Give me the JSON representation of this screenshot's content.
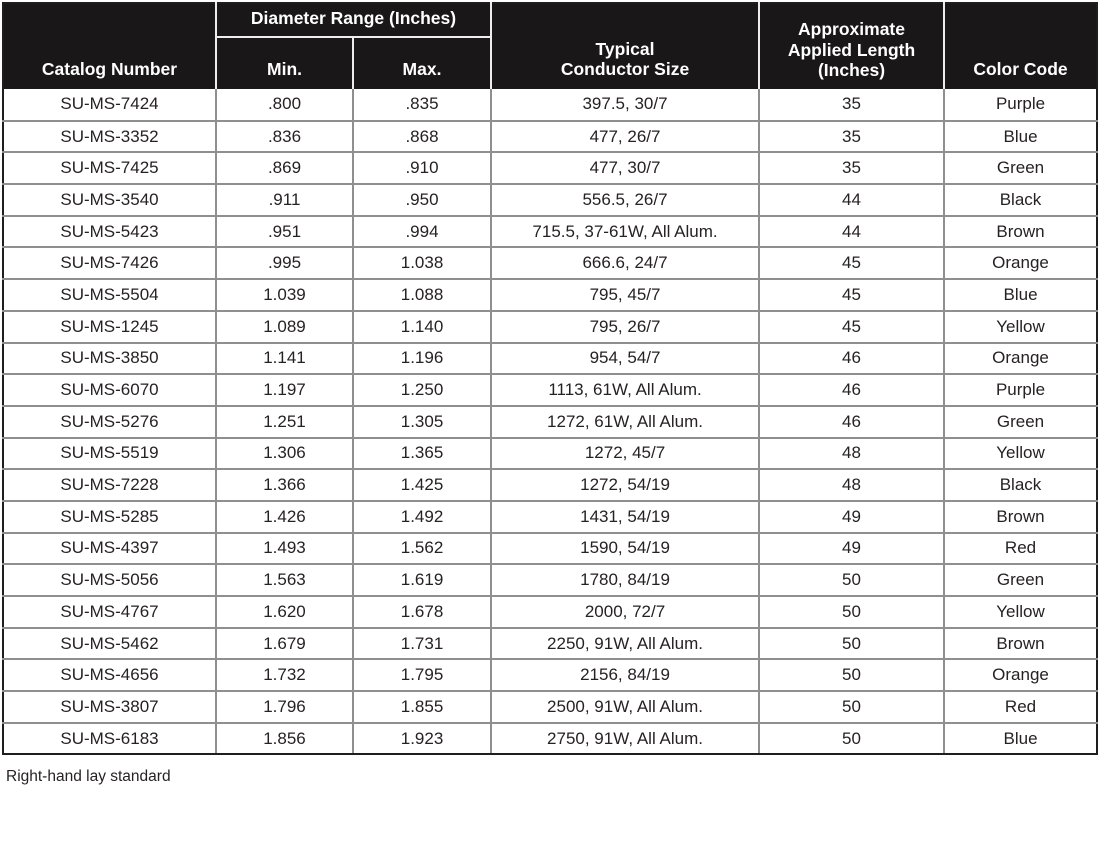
{
  "colors": {
    "header_background": "#191717",
    "header_text": "#ffffff",
    "grid_line": "#8f8f8f",
    "outer_border": "#1f1d1d",
    "body_text": "#262223"
  },
  "table": {
    "header": {
      "catalog": "Catalog Number",
      "diameter_group": "Diameter Range (Inches)",
      "min": "Min.",
      "max": "Max.",
      "conductor": "Typical\nConductor Size",
      "length": "Approximate\nApplied Length\n(Inches)",
      "color": "Color Code"
    },
    "column_keys": [
      "catalog",
      "min",
      "max",
      "conductor",
      "length",
      "color"
    ],
    "rows": [
      {
        "catalog": "SU-MS-7424",
        "min": ".800",
        "max": ".835",
        "conductor": "397.5, 30/7",
        "length": "35",
        "color": "Purple"
      },
      {
        "catalog": "SU-MS-3352",
        "min": ".836",
        "max": ".868",
        "conductor": "477, 26/7",
        "length": "35",
        "color": "Blue"
      },
      {
        "catalog": "SU-MS-7425",
        "min": ".869",
        "max": ".910",
        "conductor": "477, 30/7",
        "length": "35",
        "color": "Green"
      },
      {
        "catalog": "SU-MS-3540",
        "min": ".911",
        "max": ".950",
        "conductor": "556.5, 26/7",
        "length": "44",
        "color": "Black"
      },
      {
        "catalog": "SU-MS-5423",
        "min": ".951",
        "max": ".994",
        "conductor": "715.5, 37-61W, All Alum.",
        "length": "44",
        "color": "Brown"
      },
      {
        "catalog": "SU-MS-7426",
        "min": ".995",
        "max": "1.038",
        "conductor": "666.6, 24/7",
        "length": "45",
        "color": "Orange"
      },
      {
        "catalog": "SU-MS-5504",
        "min": "1.039",
        "max": "1.088",
        "conductor": "795, 45/7",
        "length": "45",
        "color": "Blue"
      },
      {
        "catalog": "SU-MS-1245",
        "min": "1.089",
        "max": "1.140",
        "conductor": "795, 26/7",
        "length": "45",
        "color": "Yellow"
      },
      {
        "catalog": "SU-MS-3850",
        "min": "1.141",
        "max": "1.196",
        "conductor": "954, 54/7",
        "length": "46",
        "color": "Orange"
      },
      {
        "catalog": "SU-MS-6070",
        "min": "1.197",
        "max": "1.250",
        "conductor": "1113, 61W, All Alum.",
        "length": "46",
        "color": "Purple"
      },
      {
        "catalog": "SU-MS-5276",
        "min": "1.251",
        "max": "1.305",
        "conductor": "1272, 61W, All Alum.",
        "length": "46",
        "color": "Green"
      },
      {
        "catalog": "SU-MS-5519",
        "min": "1.306",
        "max": "1.365",
        "conductor": "1272, 45/7",
        "length": "48",
        "color": "Yellow"
      },
      {
        "catalog": "SU-MS-7228",
        "min": "1.366",
        "max": "1.425",
        "conductor": "1272, 54/19",
        "length": "48",
        "color": "Black"
      },
      {
        "catalog": "SU-MS-5285",
        "min": "1.426",
        "max": "1.492",
        "conductor": "1431, 54/19",
        "length": "49",
        "color": "Brown"
      },
      {
        "catalog": "SU-MS-4397",
        "min": "1.493",
        "max": "1.562",
        "conductor": "1590, 54/19",
        "length": "49",
        "color": "Red"
      },
      {
        "catalog": "SU-MS-5056",
        "min": "1.563",
        "max": "1.619",
        "conductor": "1780, 84/19",
        "length": "50",
        "color": "Green"
      },
      {
        "catalog": "SU-MS-4767",
        "min": "1.620",
        "max": "1.678",
        "conductor": "2000, 72/7",
        "length": "50",
        "color": "Yellow"
      },
      {
        "catalog": "SU-MS-5462",
        "min": "1.679",
        "max": "1.731",
        "conductor": "2250, 91W, All Alum.",
        "length": "50",
        "color": "Brown"
      },
      {
        "catalog": "SU-MS-4656",
        "min": "1.732",
        "max": "1.795",
        "conductor": "2156, 84/19",
        "length": "50",
        "color": "Orange"
      },
      {
        "catalog": "SU-MS-3807",
        "min": "1.796",
        "max": "1.855",
        "conductor": "2500, 91W, All Alum.",
        "length": "50",
        "color": "Red"
      },
      {
        "catalog": "SU-MS-6183",
        "min": "1.856",
        "max": "1.923",
        "conductor": "2750, 91W, All Alum.",
        "length": "50",
        "color": "Blue"
      }
    ]
  },
  "footer": {
    "note": "Right-hand lay standard"
  }
}
